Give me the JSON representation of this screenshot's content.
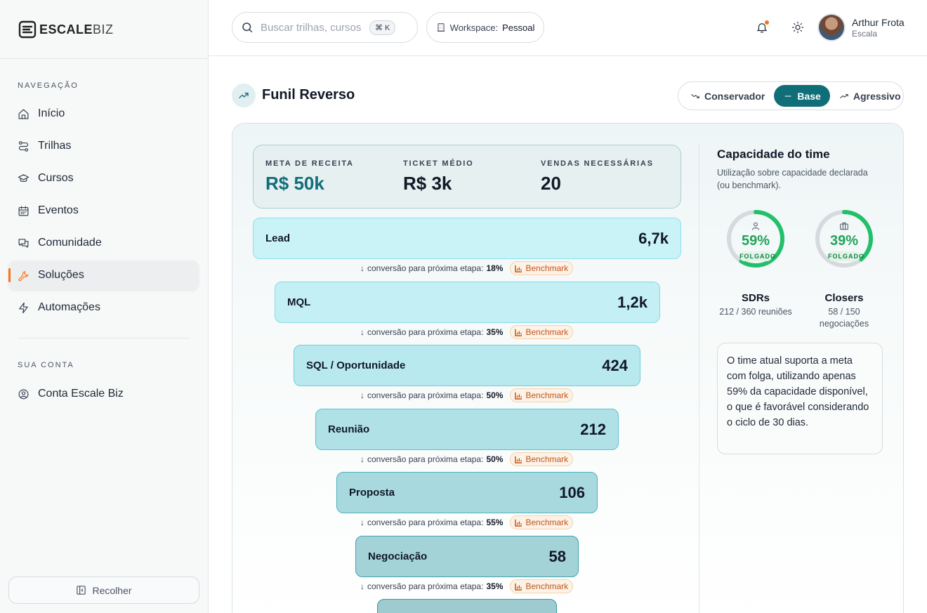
{
  "brand": {
    "name_bold": "ESCALE",
    "name_light": "BIZ"
  },
  "sidebar": {
    "nav_label": "NAVEGAÇÃO",
    "items": [
      {
        "label": "Início",
        "icon": "home-icon"
      },
      {
        "label": "Trilhas",
        "icon": "route-icon"
      },
      {
        "label": "Cursos",
        "icon": "graduation-cap-icon"
      },
      {
        "label": "Eventos",
        "icon": "calendar-icon"
      },
      {
        "label": "Comunidade",
        "icon": "chat-icon"
      },
      {
        "label": "Soluções",
        "icon": "wrench-icon",
        "active": true
      },
      {
        "label": "Automações",
        "icon": "lightning-icon"
      }
    ],
    "account_label": "SUA CONTA",
    "account_items": [
      {
        "label": "Conta Escale Biz",
        "icon": "user-circle-icon"
      }
    ],
    "collapse_label": "Recolher"
  },
  "header": {
    "search_placeholder": "Buscar trilhas, cursos",
    "search_shortcut": "⌘ K",
    "workspace_label": "Workspace:",
    "workspace_value": "Pessoal",
    "user_name": "Arthur Frota",
    "user_org": "Escala"
  },
  "page": {
    "title": "Funil Reverso",
    "modes": [
      {
        "label": "Conservador",
        "icon": "trend-down-icon"
      },
      {
        "label": "Base",
        "icon": "minus-icon",
        "active": true
      },
      {
        "label": "Agressivo",
        "icon": "trend-up-icon"
      }
    ]
  },
  "kpis": [
    {
      "label": "META DE RECEITA",
      "value": "R$ 50k"
    },
    {
      "label": "TICKET MÉDIO",
      "value": "R$ 3k"
    },
    {
      "label": "VENDAS NECESSÁRIAS",
      "value": "20"
    }
  ],
  "funnel": {
    "conversion_prefix": "conversão para próxima etapa:",
    "benchmark_label": "Benchmark",
    "stages": [
      {
        "name": "Lead",
        "value": "6,7k",
        "conversion": "18%"
      },
      {
        "name": "MQL",
        "value": "1,2k",
        "conversion": "35%"
      },
      {
        "name": "SQL / Oportunidade",
        "value": "424",
        "conversion": "50%"
      },
      {
        "name": "Reunião",
        "value": "212",
        "conversion": "50%"
      },
      {
        "name": "Proposta",
        "value": "106",
        "conversion": "55%"
      },
      {
        "name": "Negociação",
        "value": "58",
        "conversion": "35%"
      },
      {
        "name": "",
        "value": ""
      }
    ]
  },
  "capacity": {
    "title": "Capacidade do time",
    "subtitle": "Utilização sobre capacidade declarada (ou benchmark).",
    "teams": [
      {
        "name": "SDRs",
        "percent": "59%",
        "fraction": 0.59,
        "status": "FOLGADO",
        "detail": "212 / 360 reuniões",
        "icon": "user-icon",
        "color": "#22c06a"
      },
      {
        "name": "Closers",
        "percent": "39%",
        "fraction": 0.39,
        "status": "FOLGADO",
        "detail": "58 / 150 negociações",
        "icon": "briefcase-icon",
        "color": "#22c06a"
      }
    ],
    "summary": "O time atual suporta a meta com folga, utilizando apenas 59% da capacidade disponível, o que é favorável considerando o ciclo de 30 dias."
  },
  "colors": {
    "accent": "#0f6e78",
    "active_marker": "#f97316",
    "good": "#22c06a"
  }
}
